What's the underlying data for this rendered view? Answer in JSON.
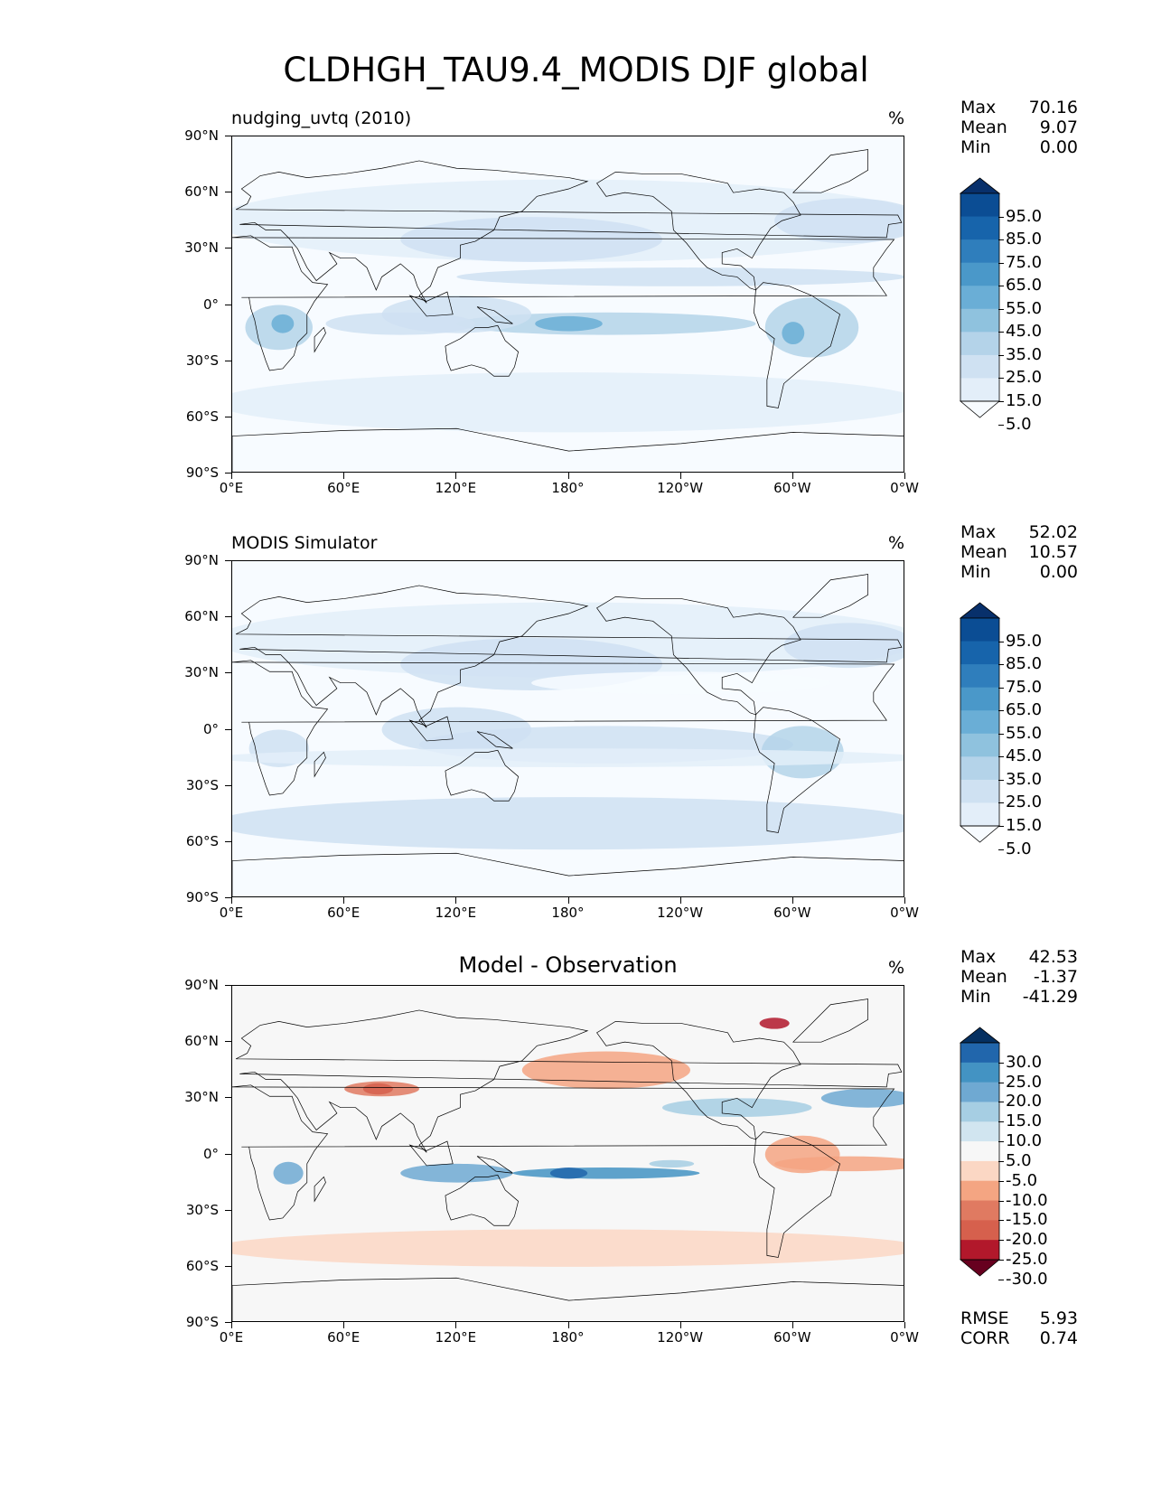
{
  "title": "CLDHGH_TAU9.4_MODIS DJF global",
  "axes": {
    "lat_ticks": [
      "90°N",
      "60°N",
      "30°N",
      "0°",
      "30°S",
      "60°S",
      "90°S"
    ],
    "lon_ticks": [
      "0°E",
      "60°E",
      "120°E",
      "180°",
      "120°W",
      "60°W",
      "0°W"
    ]
  },
  "panels": [
    {
      "title": "nudging_uvtq (2010)",
      "title_position": "left",
      "units": "%",
      "stats": {
        "max_label": "Max",
        "max": "70.16",
        "mean_label": "Mean",
        "mean": "9.07",
        "min_label": "Min",
        "min": "0.00"
      },
      "colorbar": {
        "labels": [
          "95.0",
          "85.0",
          "75.0",
          "65.0",
          "55.0",
          "45.0",
          "35.0",
          "25.0",
          "15.0",
          "5.0"
        ],
        "colors": [
          "#08306b",
          "#0b4d94",
          "#1764ab",
          "#2f7ebc",
          "#4a98c9",
          "#6aaed6",
          "#8fc2de",
          "#b4d3e9",
          "#cfe1f2",
          "#e3eef9",
          "#f7fbff"
        ]
      },
      "colormap": "Blues"
    },
    {
      "title": "MODIS Simulator",
      "title_position": "left",
      "units": "%",
      "stats": {
        "max_label": "Max",
        "max": "52.02",
        "mean_label": "Mean",
        "mean": "10.57",
        "min_label": "Min",
        "min": "0.00"
      },
      "colorbar": {
        "labels": [
          "95.0",
          "85.0",
          "75.0",
          "65.0",
          "55.0",
          "45.0",
          "35.0",
          "25.0",
          "15.0",
          "5.0"
        ],
        "colors": [
          "#08306b",
          "#0b4d94",
          "#1764ab",
          "#2f7ebc",
          "#4a98c9",
          "#6aaed6",
          "#8fc2de",
          "#b4d3e9",
          "#cfe1f2",
          "#e3eef9",
          "#f7fbff"
        ]
      },
      "colormap": "Blues"
    },
    {
      "title": "Model - Observation",
      "title_position": "center",
      "units": "%",
      "stats": {
        "max_label": "Max",
        "max": "42.53",
        "mean_label": "Mean",
        "mean": "-1.37",
        "min_label": "Min",
        "min": "-41.29"
      },
      "colorbar": {
        "labels": [
          "30.0",
          "25.0",
          "20.0",
          "15.0",
          "10.0",
          "5.0",
          "-5.0",
          "-10.0",
          "-15.0",
          "-20.0",
          "-25.0",
          "-30.0"
        ],
        "colors": [
          "#053061",
          "#2166ac",
          "#4393c3",
          "#6fa9d2",
          "#a6cee3",
          "#d1e5f0",
          "#f7f7f7",
          "#fbd7c4",
          "#f4a582",
          "#e07a61",
          "#d6604d",
          "#b2182b",
          "#67001f"
        ]
      },
      "colormap": "RdBu_r",
      "footer": {
        "rmse_label": "RMSE",
        "rmse": "5.93",
        "corr_label": "CORR",
        "corr": "0.74"
      }
    }
  ]
}
